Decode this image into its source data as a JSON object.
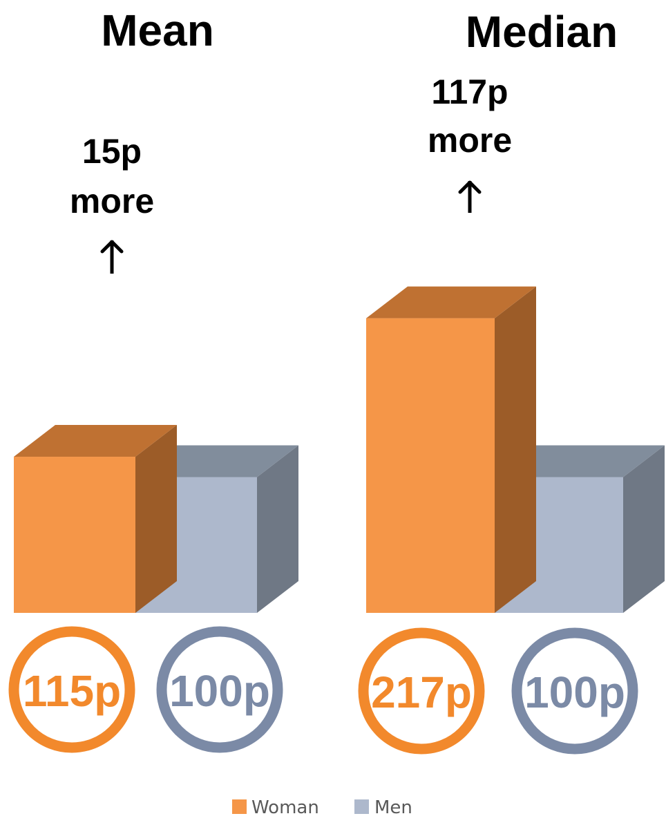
{
  "chart_data": [
    {
      "type": "bar",
      "title": "Mean",
      "categories": [
        "Woman",
        "Men"
      ],
      "values": [
        115,
        100
      ],
      "value_labels": [
        "115p",
        "100p"
      ],
      "difference_label": [
        "15p",
        "more"
      ],
      "ylim": [
        0,
        217
      ]
    },
    {
      "type": "bar",
      "title": "Median",
      "categories": [
        "Woman",
        "Men"
      ],
      "values": [
        217,
        100
      ],
      "value_labels": [
        "217p",
        "100p"
      ],
      "difference_label": [
        "117p",
        "more"
      ],
      "ylim": [
        0,
        217
      ]
    }
  ],
  "legend": [
    {
      "name": "Woman",
      "color": "#f59648"
    },
    {
      "name": "Men",
      "color": "#adb8cc"
    }
  ],
  "colors": {
    "woman_front": "#f59648",
    "woman_top": "#bf7132",
    "woman_side": "#9c5c28",
    "men_front": "#adb8cc",
    "men_top": "#818d9c",
    "men_side": "#6f7885",
    "woman_ring": "#f2892c",
    "men_ring": "#7b8aa6"
  },
  "arrow_icon": "up-arrow-icon"
}
